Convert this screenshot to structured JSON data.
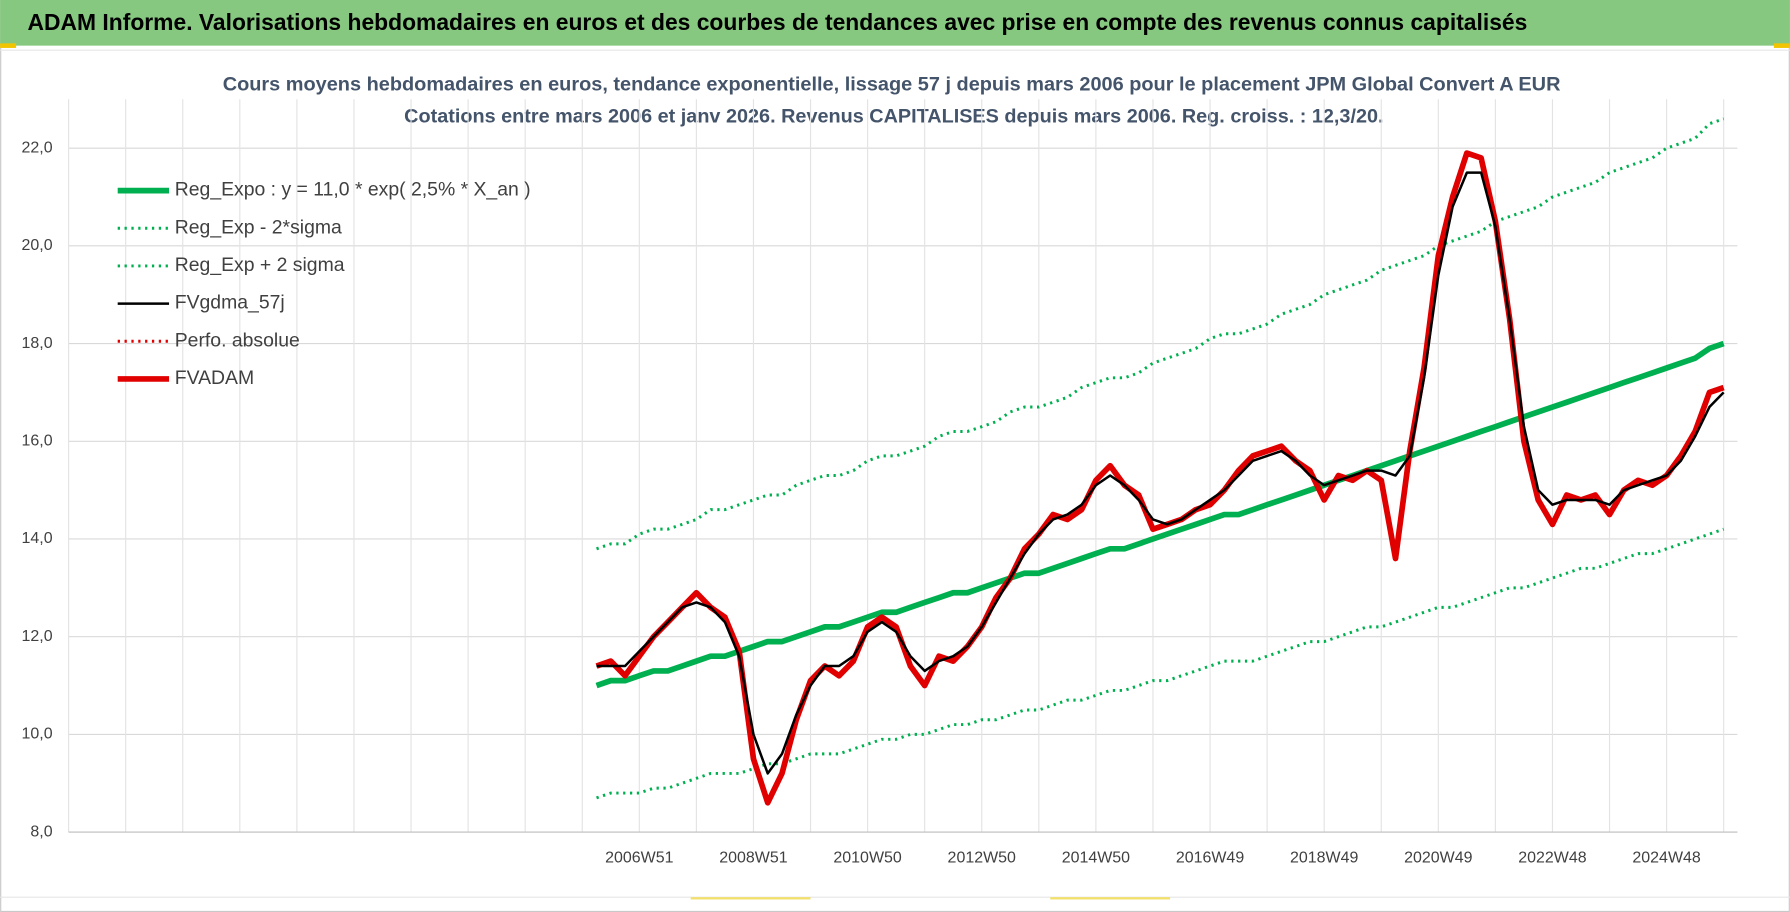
{
  "header": {
    "title": "ADAM Informe. Valorisations hebdomadaires en euros et des courbes de tendances avec prise en compte des revenus connus capitalisés"
  },
  "chart_data": {
    "type": "line",
    "title": "Cours moyens hebdomadaires en euros, tendance exponentielle, lissage 57 j depuis mars 2006 pour le placement JPM Global Convert A EUR",
    "subtitle": "Cotations entre mars 2006 et janv 2026. Revenus CAPITALISES depuis mars 2006. Reg. croiss. : 12,3/20.",
    "categories": [
      null,
      null,
      null,
      "2006W51",
      null,
      null,
      null,
      null,
      null,
      null,
      null,
      "2008W51",
      null,
      null,
      null,
      null,
      null,
      null,
      null,
      "2010W50",
      null,
      null,
      null,
      null,
      null,
      null,
      null,
      "2012W50",
      null,
      null,
      null,
      null,
      null,
      null,
      null,
      "2014W50",
      null,
      null,
      null,
      null,
      null,
      null,
      null,
      "2016W49",
      null,
      null,
      null,
      null,
      null,
      null,
      null,
      "2018W49",
      null,
      null,
      null,
      null,
      null,
      null,
      null,
      "2020W49",
      null,
      null,
      null,
      null,
      null,
      null,
      null,
      "2022W48",
      null,
      null,
      null,
      null,
      null,
      null,
      null,
      "2024W48",
      null,
      null,
      null,
      null
    ],
    "ylim": [
      8,
      23
    ],
    "yticks": [
      {
        "value": 8,
        "label": "8,0"
      },
      {
        "value": 10,
        "label": "10,0"
      },
      {
        "value": 12,
        "label": "12,0"
      },
      {
        "value": 14,
        "label": "14,0"
      },
      {
        "value": 16,
        "label": "16,0"
      },
      {
        "value": 18,
        "label": "18,0"
      },
      {
        "value": 20,
        "label": "20,0"
      },
      {
        "value": 22,
        "label": "22,0"
      }
    ],
    "grid": true,
    "legend": "top-left",
    "series": [
      {
        "name": "Reg_Expo : y = 11,0 * exp( 2,5% *  X_an )",
        "color": "#00b050",
        "line_style": "thick",
        "values": [
          11.0,
          11.1,
          11.1,
          11.2,
          11.3,
          11.3,
          11.4,
          11.5,
          11.6,
          11.6,
          11.7,
          11.8,
          11.9,
          11.9,
          12.0,
          12.1,
          12.2,
          12.2,
          12.3,
          12.4,
          12.5,
          12.5,
          12.6,
          12.7,
          12.8,
          12.9,
          12.9,
          13.0,
          13.1,
          13.2,
          13.3,
          13.3,
          13.4,
          13.5,
          13.6,
          13.7,
          13.8,
          13.8,
          13.9,
          14.0,
          14.1,
          14.2,
          14.3,
          14.4,
          14.5,
          14.5,
          14.6,
          14.7,
          14.8,
          14.9,
          15.0,
          15.1,
          15.2,
          15.3,
          15.4,
          15.5,
          15.6,
          15.7,
          15.8,
          15.9,
          16.0,
          16.1,
          16.2,
          16.3,
          16.4,
          16.5,
          16.6,
          16.7,
          16.8,
          16.9,
          17.0,
          17.1,
          17.2,
          17.3,
          17.4,
          17.5,
          17.6,
          17.7,
          17.9,
          18.0
        ]
      },
      {
        "name": "Reg_Exp - 2*sigma",
        "color": "#00b050",
        "line_style": "dotted",
        "values": [
          8.7,
          8.8,
          8.8,
          8.8,
          8.9,
          8.9,
          9.0,
          9.1,
          9.2,
          9.2,
          9.2,
          9.3,
          9.4,
          9.4,
          9.5,
          9.6,
          9.6,
          9.6,
          9.7,
          9.8,
          9.9,
          9.9,
          10.0,
          10.0,
          10.1,
          10.2,
          10.2,
          10.3,
          10.3,
          10.4,
          10.5,
          10.5,
          10.6,
          10.7,
          10.7,
          10.8,
          10.9,
          10.9,
          11.0,
          11.1,
          11.1,
          11.2,
          11.3,
          11.4,
          11.5,
          11.5,
          11.5,
          11.6,
          11.7,
          11.8,
          11.9,
          11.9,
          12.0,
          12.1,
          12.2,
          12.2,
          12.3,
          12.4,
          12.5,
          12.6,
          12.6,
          12.7,
          12.8,
          12.9,
          13.0,
          13.0,
          13.1,
          13.2,
          13.3,
          13.4,
          13.4,
          13.5,
          13.6,
          13.7,
          13.7,
          13.8,
          13.9,
          14.0,
          14.1,
          14.2
        ]
      },
      {
        "name": "Reg_Exp + 2 sigma",
        "color": "#00b050",
        "line_style": "dotted",
        "values": [
          13.8,
          13.9,
          13.9,
          14.1,
          14.2,
          14.2,
          14.3,
          14.4,
          14.6,
          14.6,
          14.7,
          14.8,
          14.9,
          14.9,
          15.1,
          15.2,
          15.3,
          15.3,
          15.4,
          15.6,
          15.7,
          15.7,
          15.8,
          15.9,
          16.1,
          16.2,
          16.2,
          16.3,
          16.4,
          16.6,
          16.7,
          16.7,
          16.8,
          16.9,
          17.1,
          17.2,
          17.3,
          17.3,
          17.4,
          17.6,
          17.7,
          17.8,
          17.9,
          18.1,
          18.2,
          18.2,
          18.3,
          18.4,
          18.6,
          18.7,
          18.8,
          19.0,
          19.1,
          19.2,
          19.3,
          19.5,
          19.6,
          19.7,
          19.8,
          20.0,
          20.1,
          20.2,
          20.3,
          20.5,
          20.6,
          20.7,
          20.8,
          21.0,
          21.1,
          21.2,
          21.3,
          21.5,
          21.6,
          21.7,
          21.8,
          22.0,
          22.1,
          22.2,
          22.5,
          22.6
        ]
      },
      {
        "name": "FVgdma_57j",
        "color": "#000000",
        "line_style": "solid",
        "values": [
          11.4,
          11.4,
          11.4,
          11.7,
          12.0,
          12.3,
          12.6,
          12.7,
          12.6,
          12.3,
          11.6,
          10.0,
          9.2,
          9.6,
          10.4,
          11.0,
          11.4,
          11.4,
          11.6,
          12.1,
          12.3,
          12.1,
          11.6,
          11.3,
          11.5,
          11.6,
          11.8,
          12.2,
          12.7,
          13.2,
          13.7,
          14.1,
          14.4,
          14.5,
          14.7,
          15.1,
          15.3,
          15.1,
          14.8,
          14.4,
          14.3,
          14.4,
          14.6,
          14.8,
          15.0,
          15.3,
          15.6,
          15.7,
          15.8,
          15.6,
          15.3,
          15.1,
          15.2,
          15.3,
          15.4,
          15.4,
          15.3,
          15.7,
          17.3,
          19.4,
          20.8,
          21.5,
          21.5,
          20.4,
          18.5,
          16.3,
          15.0,
          14.7,
          14.8,
          14.8,
          14.8,
          14.7,
          15.0,
          15.1,
          15.2,
          15.3,
          15.6,
          16.1,
          16.7,
          17.0
        ]
      },
      {
        "name": "Perfo. absolue",
        "color": "#e00000",
        "line_style": "dotted"
      },
      {
        "name": "FVADAM",
        "color": "#e00000",
        "line_style": "thick",
        "values": [
          11.4,
          11.5,
          11.2,
          11.6,
          12.0,
          12.3,
          12.6,
          12.9,
          12.6,
          12.4,
          11.7,
          9.5,
          8.6,
          9.2,
          10.3,
          11.1,
          11.4,
          11.2,
          11.5,
          12.2,
          12.4,
          12.2,
          11.4,
          11.0,
          11.6,
          11.5,
          11.8,
          12.2,
          12.8,
          13.2,
          13.8,
          14.1,
          14.5,
          14.4,
          14.6,
          15.2,
          15.5,
          15.1,
          14.9,
          14.2,
          14.3,
          14.4,
          14.6,
          14.7,
          15.0,
          15.4,
          15.7,
          15.8,
          15.9,
          15.6,
          15.4,
          14.8,
          15.3,
          15.2,
          15.4,
          15.2,
          13.6,
          15.8,
          17.5,
          19.8,
          21.0,
          21.9,
          21.8,
          20.5,
          18.5,
          16.0,
          14.8,
          14.3,
          14.9,
          14.8,
          14.9,
          14.5,
          15.0,
          15.2,
          15.1,
          15.3,
          15.7,
          16.2,
          17.0,
          17.1
        ]
      }
    ]
  }
}
